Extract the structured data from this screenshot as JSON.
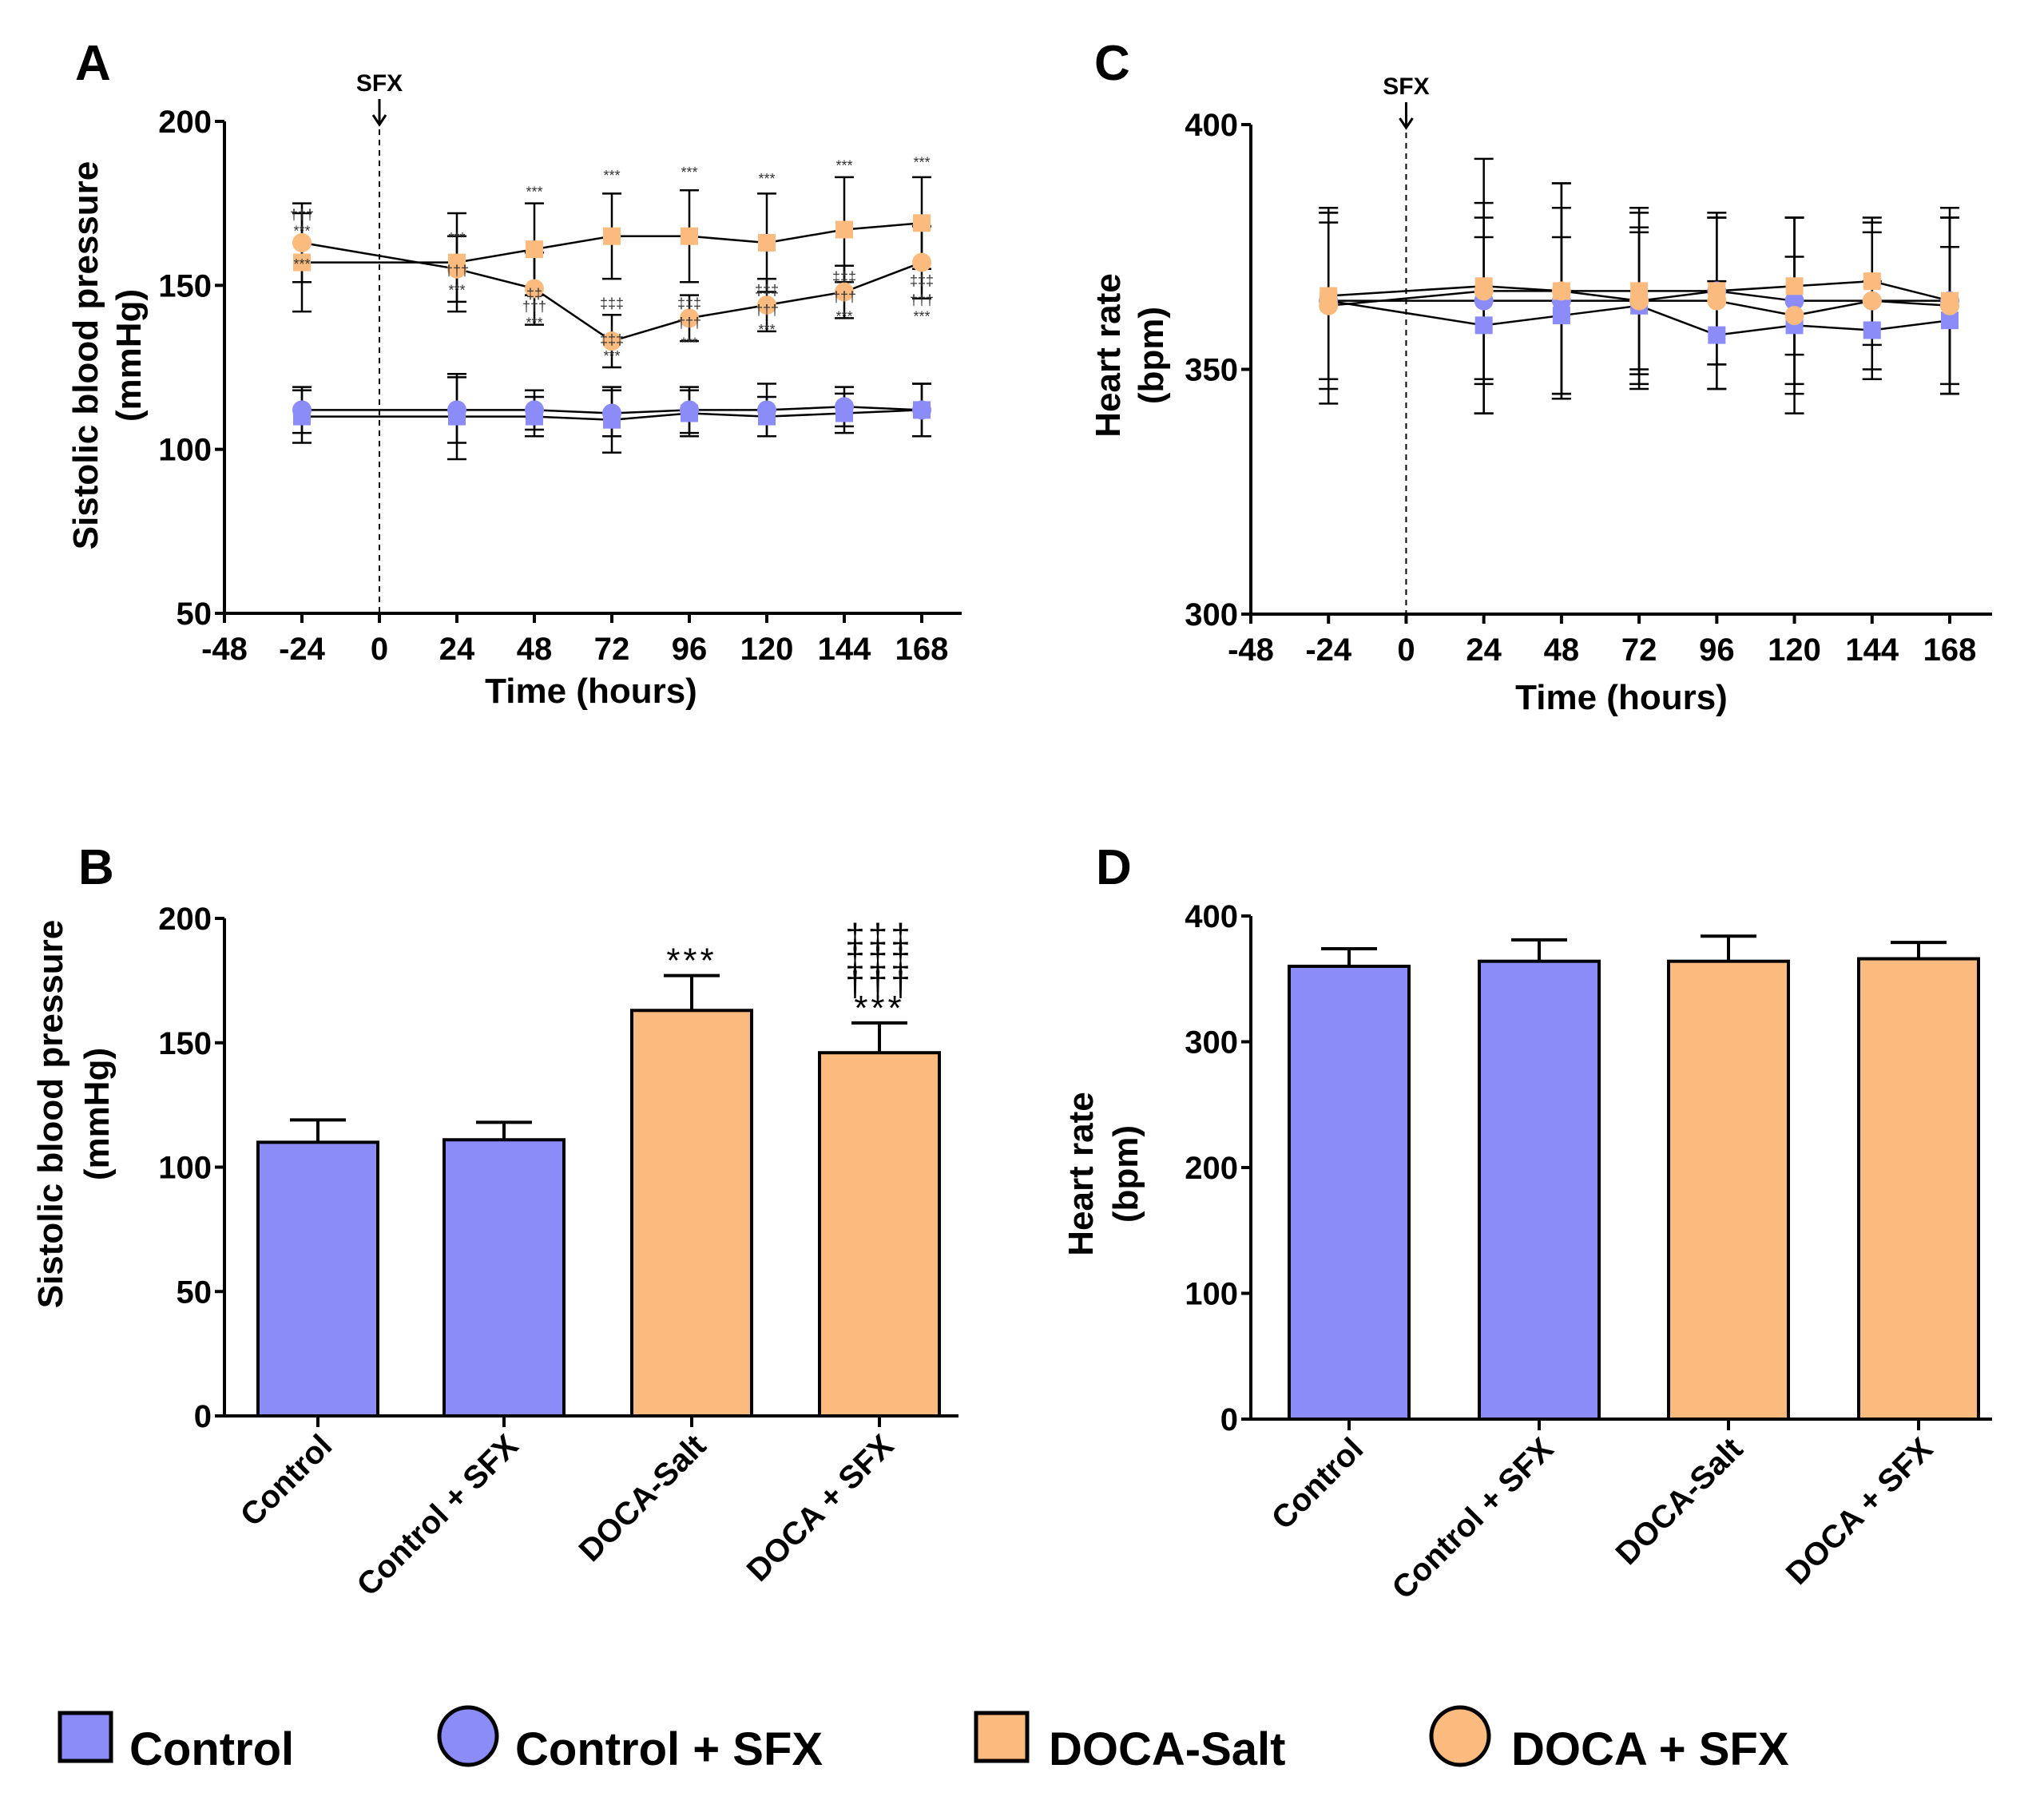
{
  "colors": {
    "control": "#8b8cf7",
    "doca": "#fcbb7e",
    "ink": "#000000"
  },
  "panels": {
    "A": {
      "label": "A",
      "sfx": "SFX",
      "ylabel": [
        "Sistolic blood pressure",
        "(mmHg)"
      ],
      "xlabel": "Time (hours)"
    },
    "B": {
      "label": "B",
      "ylabel": [
        "Sistolic blood pressure",
        "(mmHg)"
      ]
    },
    "C": {
      "label": "C",
      "sfx": "SFX",
      "ylabel": [
        "Heart rate",
        "(bpm)"
      ],
      "xlabel": "Time (hours)"
    },
    "D": {
      "label": "D",
      "ylabel": [
        "Heart rate",
        "(bpm)"
      ]
    }
  },
  "legend": [
    {
      "label": "Control",
      "marker": "square",
      "color": "#8b8cf7"
    },
    {
      "label": "Control + SFX",
      "marker": "circle",
      "color": "#8b8cf7"
    },
    {
      "label": "DOCA-Salt",
      "marker": "square",
      "color": "#fcbb7e"
    },
    {
      "label": "DOCA + SFX",
      "marker": "circle",
      "color": "#fcbb7e"
    }
  ],
  "chart_data": [
    {
      "panel": "A",
      "type": "line",
      "xlabel": "Time (hours)",
      "ylabel": "Sistolic blood pressure (mmHg)",
      "xlim": [
        -48,
        168
      ],
      "ylim": [
        50,
        200
      ],
      "xticks": [
        -48,
        -24,
        0,
        24,
        48,
        72,
        96,
        120,
        144,
        168
      ],
      "yticks": [
        50,
        100,
        150,
        200
      ],
      "vline": {
        "x": 0,
        "label": "SFX"
      },
      "x": [
        -24,
        24,
        48,
        72,
        96,
        120,
        144,
        168
      ],
      "series": [
        {
          "name": "Control",
          "marker": "square",
          "color": "#8b8cf7",
          "values": [
            110,
            110,
            110,
            109,
            111,
            110,
            111,
            112
          ],
          "error": [
            8,
            13,
            6,
            10,
            7,
            6,
            6,
            8
          ]
        },
        {
          "name": "Control + SFX",
          "marker": "circle",
          "color": "#8b8cf7",
          "values": [
            112,
            112,
            112,
            111,
            112,
            112,
            113,
            112
          ],
          "error": [
            7,
            10,
            6,
            7,
            7,
            8,
            6,
            8
          ]
        },
        {
          "name": "DOCA-Salt",
          "marker": "square",
          "color": "#fcbb7e",
          "values": [
            157,
            157,
            161,
            165,
            165,
            163,
            167,
            169
          ],
          "error": [
            15,
            15,
            14,
            13,
            14,
            15,
            16,
            14
          ]
        },
        {
          "name": "DOCA + SFX",
          "marker": "circle",
          "color": "#fcbb7e",
          "values": [
            163,
            155,
            149,
            133,
            140,
            144,
            148,
            157
          ],
          "error": [
            12,
            10,
            11,
            8,
            7,
            8,
            8,
            11
          ]
        }
      ],
      "annotations": [
        {
          "x": -24,
          "y": 170,
          "text": "†††"
        },
        {
          "x": -24,
          "y": 165,
          "text": "***"
        },
        {
          "x": -24,
          "y": 155,
          "text": "***"
        },
        {
          "x": 24,
          "y": 163,
          "text": "***"
        },
        {
          "x": 24,
          "y": 153,
          "text": "†††"
        },
        {
          "x": 24,
          "y": 147,
          "text": "***"
        },
        {
          "x": 48,
          "y": 177,
          "text": "***"
        },
        {
          "x": 48,
          "y": 146,
          "text": "‡‡"
        },
        {
          "x": 48,
          "y": 142,
          "text": "†††"
        },
        {
          "x": 48,
          "y": 137,
          "text": "***"
        },
        {
          "x": 72,
          "y": 182,
          "text": "***"
        },
        {
          "x": 72,
          "y": 143,
          "text": "‡‡‡"
        },
        {
          "x": 72,
          "y": 132,
          "text": "‡‡‡"
        },
        {
          "x": 72,
          "y": 127,
          "text": "***"
        },
        {
          "x": 96,
          "y": 183,
          "text": "***"
        },
        {
          "x": 96,
          "y": 143,
          "text": "‡‡‡"
        },
        {
          "x": 96,
          "y": 137,
          "text": "†††"
        },
        {
          "x": 96,
          "y": 131,
          "text": "***"
        },
        {
          "x": 120,
          "y": 181,
          "text": "***"
        },
        {
          "x": 120,
          "y": 147,
          "text": "‡‡‡"
        },
        {
          "x": 120,
          "y": 141,
          "text": "†††"
        },
        {
          "x": 120,
          "y": 135,
          "text": "***"
        },
        {
          "x": 144,
          "y": 185,
          "text": "***"
        },
        {
          "x": 144,
          "y": 151,
          "text": "‡‡‡"
        },
        {
          "x": 144,
          "y": 145,
          "text": "†††"
        },
        {
          "x": 144,
          "y": 139,
          "text": "***"
        },
        {
          "x": 168,
          "y": 186,
          "text": "***"
        },
        {
          "x": 168,
          "y": 150,
          "text": "‡‡‡"
        },
        {
          "x": 168,
          "y": 144,
          "text": "†††"
        },
        {
          "x": 168,
          "y": 139,
          "text": "***"
        }
      ]
    },
    {
      "panel": "B",
      "type": "bar",
      "ylabel": "Sistolic blood pressure (mmHg)",
      "ylim": [
        0,
        200
      ],
      "yticks": [
        0,
        50,
        100,
        150,
        200
      ],
      "categories": [
        "Control",
        "Control + SFX",
        "DOCA-Salt",
        "DOCA + SFX"
      ],
      "values": [
        110,
        111,
        163,
        146
      ],
      "error": [
        9,
        7,
        14,
        12
      ],
      "colors": [
        "#8b8cf7",
        "#8b8cf7",
        "#fcbb7e",
        "#fcbb7e"
      ],
      "annotations": [
        {
          "category": "DOCA-Salt",
          "lines": [
            "***"
          ]
        },
        {
          "category": "DOCA + SFX",
          "lines": [
            "‡‡‡",
            "‡‡‡",
            "†††",
            "***"
          ]
        }
      ]
    },
    {
      "panel": "C",
      "type": "line",
      "xlabel": "Time (hours)",
      "ylabel": "Heart rate (bpm)",
      "xlim": [
        -48,
        168
      ],
      "ylim": [
        300,
        400
      ],
      "xticks": [
        -48,
        -24,
        0,
        24,
        48,
        72,
        96,
        120,
        144,
        168
      ],
      "yticks": [
        300,
        350,
        400
      ],
      "vline": {
        "x": 0,
        "label": "SFX"
      },
      "x": [
        -24,
        24,
        48,
        72,
        96,
        120,
        144,
        168
      ],
      "series": [
        {
          "name": "Control",
          "marker": "square",
          "color": "#8b8cf7",
          "values": [
            364,
            359,
            361,
            363,
            357,
            359,
            358,
            360
          ],
          "error": [
            18,
            18,
            16,
            16,
            11,
            14,
            10,
            15
          ]
        },
        {
          "name": "Control + SFX",
          "marker": "circle",
          "color": "#8b8cf7",
          "values": [
            364,
            364,
            364,
            364,
            366,
            364,
            364,
            364
          ],
          "error": [
            16,
            17,
            19,
            18,
            15,
            17,
            14,
            17
          ]
        },
        {
          "name": "DOCA-Salt",
          "marker": "square",
          "color": "#fcbb7e",
          "values": [
            365,
            367,
            366,
            366,
            366,
            367,
            368,
            364
          ],
          "error": [
            17,
            26,
            22,
            17,
            15,
            14,
            13,
            19
          ]
        },
        {
          "name": "DOCA + SFX",
          "marker": "circle",
          "color": "#fcbb7e",
          "values": [
            363,
            366,
            366,
            364,
            364,
            361,
            364,
            363
          ],
          "error": [
            20,
            18,
            22,
            14,
            18,
            20,
            16,
            18
          ]
        }
      ]
    },
    {
      "panel": "D",
      "type": "bar",
      "ylabel": "Heart rate (bpm)",
      "ylim": [
        0,
        400
      ],
      "yticks": [
        0,
        100,
        200,
        300,
        400
      ],
      "categories": [
        "Control",
        "Control + SFX",
        "DOCA-Salt",
        "DOCA + SFX"
      ],
      "values": [
        360,
        364,
        364,
        366
      ],
      "error": [
        14,
        17,
        20,
        13
      ],
      "colors": [
        "#8b8cf7",
        "#8b8cf7",
        "#fcbb7e",
        "#fcbb7e"
      ]
    }
  ]
}
